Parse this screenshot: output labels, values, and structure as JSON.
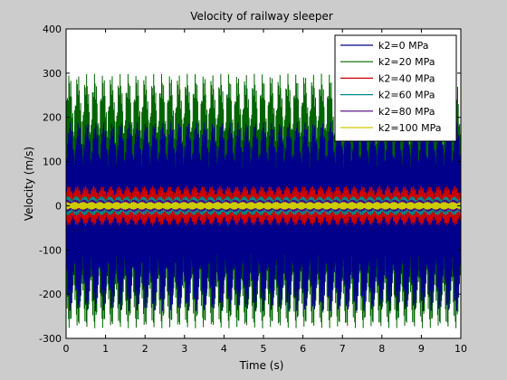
{
  "chart_data": {
    "type": "line",
    "title": "Velocity of railway sleeper",
    "xlabel": "Time (s)",
    "ylabel": "Velocity (m/s)",
    "xlim": [
      0,
      10
    ],
    "ylim": [
      -300,
      400
    ],
    "xticks": [
      0,
      1,
      2,
      3,
      4,
      5,
      6,
      7,
      8,
      9,
      10
    ],
    "yticks": [
      -300,
      -200,
      -100,
      0,
      100,
      200,
      300,
      400
    ],
    "grid": false,
    "legend_position": "top-right",
    "series": [
      {
        "name": "k2=0 MPa",
        "color": "#00008b",
        "approx_envelope": {
          "max_pos": 190,
          "max_neg": -240
        }
      },
      {
        "name": "k2=20 MPa",
        "color": "#006400",
        "approx_envelope": {
          "max_pos": 300,
          "max_neg": -280
        }
      },
      {
        "name": "k2=40 MPa",
        "color": "#cc0000",
        "approx_envelope": {
          "max_pos": 45,
          "max_neg": -45
        }
      },
      {
        "name": "k2=60 MPa",
        "color": "#008b8b",
        "approx_envelope": {
          "max_pos": 22,
          "max_neg": -22
        }
      },
      {
        "name": "k2=80 MPa",
        "color": "#4b0082",
        "approx_envelope": {
          "max_pos": 14,
          "max_neg": -14
        }
      },
      {
        "name": "k2=100 MPa",
        "color": "#cccc00",
        "approx_envelope": {
          "max_pos": 9,
          "max_neg": -9
        }
      }
    ]
  }
}
